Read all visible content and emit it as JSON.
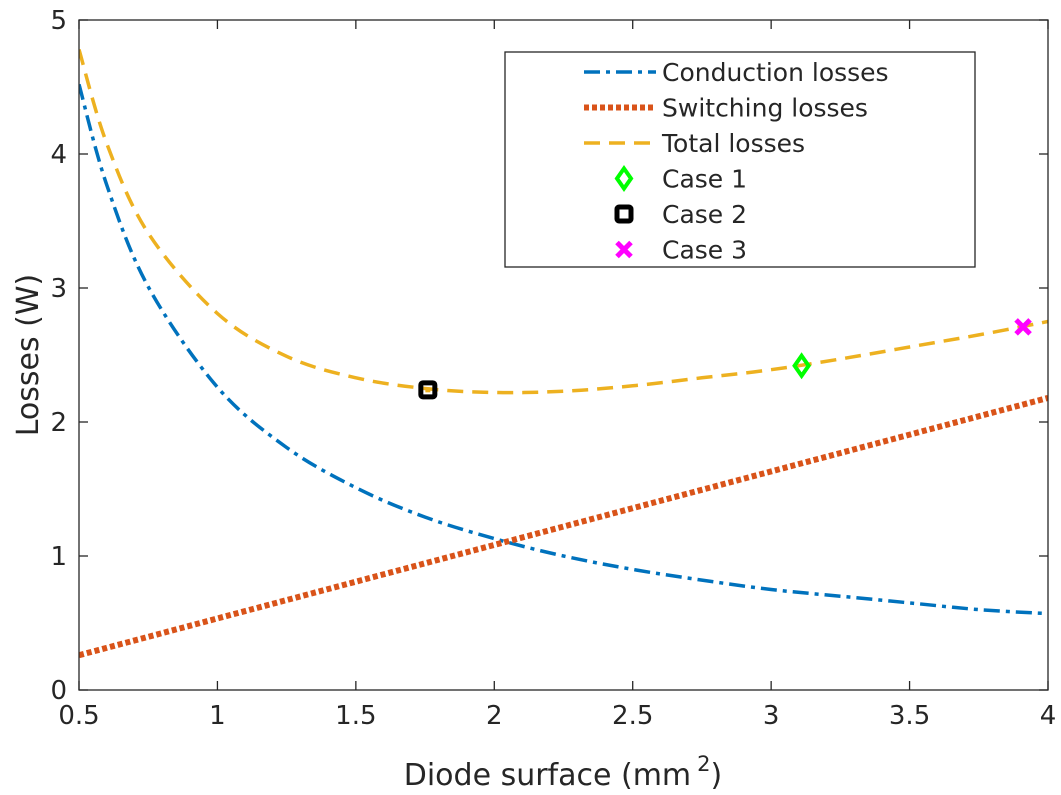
{
  "chart_data": {
    "type": "line",
    "title": "",
    "xlabel": "Diode surface (mm",
    "xlabel_sup": "2",
    "xlabel_close": ")",
    "ylabel": "Losses (W)",
    "xlim": [
      0.5,
      4
    ],
    "ylim": [
      0,
      5
    ],
    "xticks": [
      0.5,
      1,
      1.5,
      2,
      2.5,
      3,
      3.5,
      4
    ],
    "xtick_labels": [
      "0.5",
      "1",
      "1.5",
      "2",
      "2.5",
      "3",
      "3.5",
      "4"
    ],
    "yticks": [
      0,
      1,
      2,
      3,
      4,
      5
    ],
    "ytick_labels": [
      "0",
      "1",
      "2",
      "3",
      "4",
      "5"
    ],
    "grid": false,
    "legend_position": "top-right",
    "series": [
      {
        "name": "Conduction losses",
        "style": "dash-dot",
        "color": "#0072BD",
        "x": [
          0.5,
          0.6,
          0.75,
          1,
          1.25,
          1.5,
          1.75,
          2,
          2.25,
          2.5,
          2.75,
          3,
          3.25,
          3.5,
          3.75,
          4
        ],
        "y": [
          4.52,
          3.77,
          3.01,
          2.26,
          1.81,
          1.51,
          1.29,
          1.13,
          1.0,
          0.9,
          0.82,
          0.75,
          0.7,
          0.65,
          0.6,
          0.57
        ]
      },
      {
        "name": "Switching losses",
        "style": "dotted",
        "color": "#D95319",
        "x": [
          0.5,
          4
        ],
        "y": [
          0.26,
          2.18
        ]
      },
      {
        "name": "Total losses",
        "style": "dashed",
        "color": "#EDB120",
        "x": [
          0.5,
          0.6,
          0.75,
          1,
          1.25,
          1.5,
          1.75,
          2,
          2.25,
          2.5,
          2.75,
          3,
          3.25,
          3.5,
          3.75,
          4
        ],
        "y": [
          4.78,
          4.08,
          3.41,
          2.81,
          2.49,
          2.33,
          2.25,
          2.22,
          2.23,
          2.27,
          2.33,
          2.39,
          2.47,
          2.56,
          2.65,
          2.75
        ]
      }
    ],
    "points": [
      {
        "name": "Case 1",
        "marker": "diamond",
        "color": "#00FF00",
        "x": 3.11,
        "y": 2.42
      },
      {
        "name": "Case 2",
        "marker": "square",
        "color": "#000000",
        "x": 1.76,
        "y": 2.24
      },
      {
        "name": "Case 3",
        "marker": "x",
        "color": "#FF00FF",
        "x": 3.91,
        "y": 2.71
      }
    ]
  }
}
